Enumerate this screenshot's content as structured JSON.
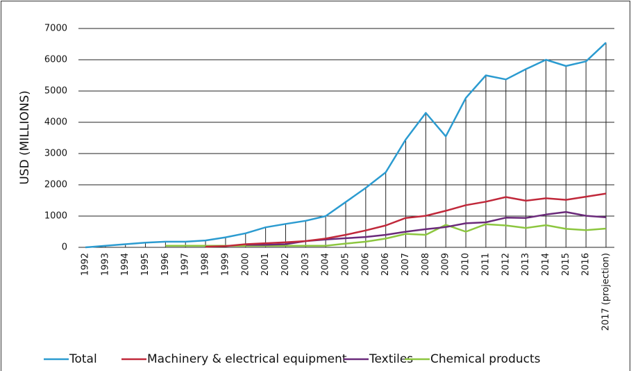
{
  "chart_data": {
    "type": "line",
    "y_label": "USD (MILLIONS)",
    "categories": [
      "1992",
      "1993",
      "1994",
      "1995",
      "1996",
      "1997",
      "1998",
      "1999",
      "2000",
      "2001",
      "2002",
      "2003",
      "2004",
      "2005",
      "2006",
      "2006",
      "2007",
      "2008",
      "2009",
      "2010",
      "2011",
      "2012",
      "2013",
      "2014",
      "2015",
      "2016",
      "2017 (projection)"
    ],
    "series": [
      {
        "name": "Total",
        "color": "#2b9bd0",
        "values": [
          0,
          50,
          100,
          150,
          180,
          180,
          220,
          320,
          450,
          640,
          750,
          850,
          1000,
          1450,
          1900,
          2400,
          3450,
          4300,
          3550,
          4780,
          5500,
          5370,
          5700,
          6000,
          5800,
          5950,
          6550
        ]
      },
      {
        "name": "Machinery & electrical equipment",
        "color": "#c0283a",
        "values": [
          null,
          null,
          null,
          null,
          null,
          null,
          20,
          40,
          100,
          130,
          160,
          200,
          280,
          400,
          540,
          700,
          940,
          1010,
          1170,
          1350,
          1460,
          1610,
          1490,
          1570,
          1520,
          1620,
          1720
        ]
      },
      {
        "name": "Textiles",
        "color": "#6a2a7a",
        "values": [
          null,
          null,
          null,
          null,
          null,
          null,
          null,
          null,
          80,
          80,
          100,
          200,
          250,
          290,
          330,
          400,
          500,
          580,
          650,
          770,
          800,
          950,
          940,
          1050,
          1130,
          1010,
          960
        ]
      },
      {
        "name": "Chemical products",
        "color": "#8cc63f",
        "values": [
          null,
          null,
          null,
          null,
          50,
          50,
          50,
          50,
          50,
          50,
          50,
          50,
          50,
          120,
          180,
          280,
          430,
          400,
          720,
          500,
          740,
          700,
          620,
          710,
          590,
          550,
          600
        ]
      }
    ],
    "ylim": [
      0,
      7000
    ],
    "yticks": [
      0,
      1000,
      2000,
      3000,
      4000,
      5000,
      6000,
      7000
    ],
    "grid": true,
    "drop_lines": true,
    "legend": "bottom"
  }
}
